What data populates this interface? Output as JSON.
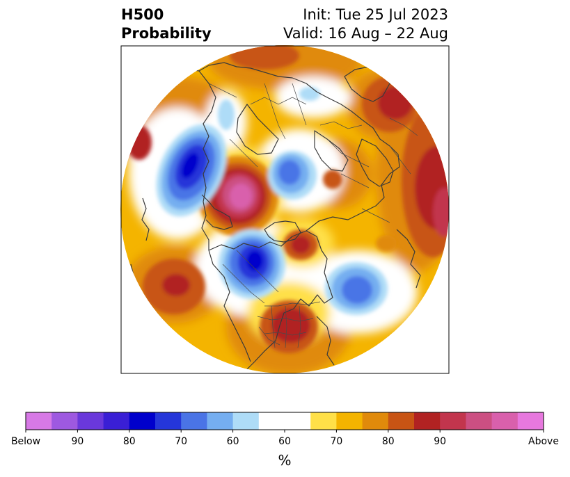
{
  "title": {
    "left_line1": "H500",
    "left_line2": "Probability",
    "right_line1": "Init: Tue 25 Jul 2023",
    "right_line2": "Valid: 16 Aug – 22 Aug"
  },
  "colorbar": {
    "unit": "%",
    "tick_labels": [
      "Below",
      "90",
      "80",
      "70",
      "60",
      "60",
      "70",
      "80",
      "90",
      "Above"
    ],
    "colors": [
      "#d779e6",
      "#9e59e0",
      "#6a38db",
      "#3a1fd5",
      "#0000cc",
      "#2536d9",
      "#4a74e6",
      "#75aef0",
      "#aedcf7",
      "#ffffff",
      "#ffffff",
      "#ffe048",
      "#f4b400",
      "#e08a0b",
      "#c85414",
      "#b12222",
      "#c2354d",
      "#cc4f82",
      "#d960ac",
      "#e778de"
    ]
  },
  "map": {
    "projection": "north-polar-stereographic",
    "field": "500 hPa height tercile probability",
    "anomalies": [
      {
        "region": "north-pacific",
        "category": "below",
        "probability": 80
      },
      {
        "region": "alaska-bering",
        "category": "above",
        "probability": 90
      },
      {
        "region": "north-central-canada",
        "category": "below",
        "probability": 80
      },
      {
        "region": "north-atlantic",
        "category": "below",
        "probability": 70
      },
      {
        "region": "eastern-united-states",
        "category": "above",
        "probability": 80
      },
      {
        "region": "north-of-scandinavia",
        "category": "below",
        "probability": 70
      },
      {
        "region": "northeastern-canada",
        "category": "above",
        "probability": 80
      },
      {
        "region": "central-pacific",
        "category": "above",
        "probability": 80
      },
      {
        "region": "western-europe",
        "category": "above",
        "probability": 80
      }
    ]
  }
}
